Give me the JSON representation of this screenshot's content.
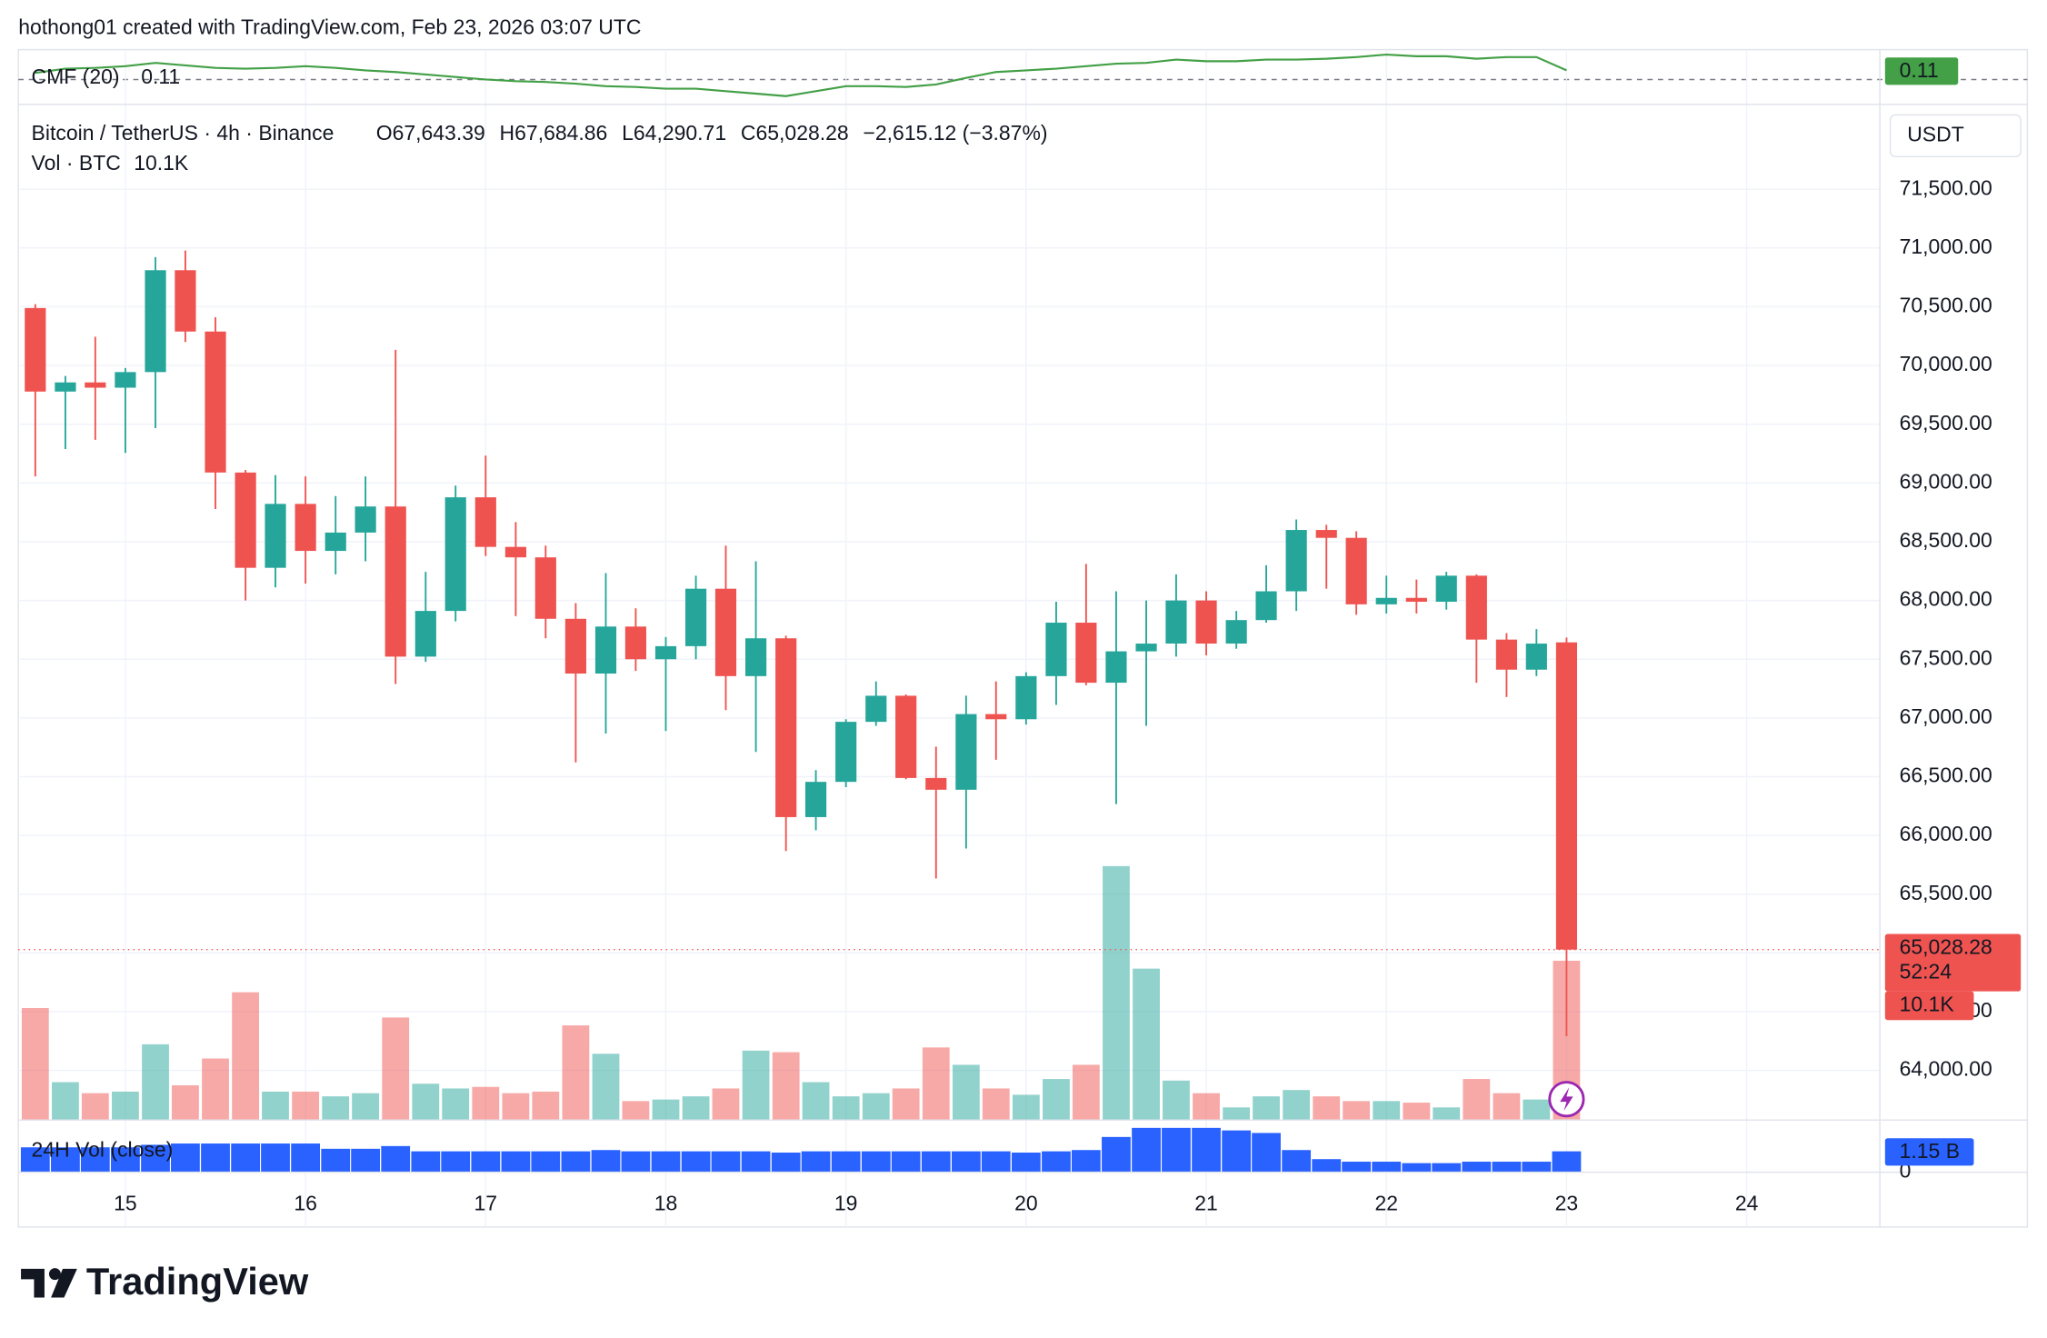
{
  "header": {
    "attribution": "hothong01 created with TradingView.com, Feb 23, 2026 03:07 UTC"
  },
  "brand": "TradingView",
  "chart_data": [
    {
      "type": "line",
      "title": "CMF (20)",
      "color": "#43a047",
      "ylim": [
        -0.3,
        0.36
      ],
      "values": [
        0.08,
        0.13,
        0.14,
        0.16,
        0.2,
        0.17,
        0.14,
        0.13,
        0.14,
        0.16,
        0.14,
        0.11,
        0.09,
        0.06,
        0.03,
        0,
        -0.02,
        -0.03,
        -0.05,
        -0.08,
        -0.09,
        -0.11,
        -0.11,
        -0.14,
        -0.17,
        -0.2,
        -0.14,
        -0.08,
        -0.08,
        -0.09,
        -0.06,
        0.02,
        0.09,
        0.11,
        0.13,
        0.16,
        0.19,
        0.2,
        0.24,
        0.22,
        0.22,
        0.24,
        0.24,
        0.25,
        0.27,
        0.3,
        0.28,
        0.28,
        0.25,
        0.27,
        0.27,
        0.11
      ]
    },
    {
      "type": "candlestick",
      "title": "Bitcoin / TetherUS · 4h · Binance",
      "ohlc_legend": [
        {
          "key": "O",
          "value": "67,643.39"
        },
        {
          "key": "H",
          "value": "67,684.86"
        },
        {
          "key": "L",
          "value": "64,290.71"
        },
        {
          "key": "C",
          "value": "65,028.28"
        }
      ],
      "change": "−2,615.12 (−3.87%)",
      "currency": "USDT",
      "countdown": "52:24",
      "up_color": "#26a69a",
      "down_color": "#ef5350",
      "x": [
        14.5,
        14.667,
        14.833,
        15,
        15.167,
        15.333,
        15.5,
        15.667,
        15.833,
        16,
        16.167,
        16.333,
        16.5,
        16.667,
        16.833,
        17,
        17.167,
        17.333,
        17.5,
        17.667,
        17.833,
        18,
        18.167,
        18.333,
        18.5,
        18.667,
        18.833,
        19,
        19.167,
        19.333,
        19.5,
        19.667,
        19.833,
        20,
        20.167,
        20.333,
        20.5,
        20.667,
        20.833,
        21,
        21.167,
        21.333,
        21.5,
        21.667,
        21.833,
        22,
        22.167,
        22.333,
        22.5,
        22.667,
        22.833,
        23
      ],
      "xlim": [
        14.406,
        24.739
      ],
      "xticks": [
        15,
        16,
        17,
        18,
        19,
        20,
        21,
        22,
        23,
        24
      ],
      "open": [
        70489,
        69778,
        69856,
        69811,
        69944,
        70811,
        70289,
        69089,
        68278,
        68822,
        68422,
        68578,
        68800,
        67522,
        67911,
        68878,
        68456,
        68367,
        67844,
        67378,
        67778,
        67500,
        67611,
        68100,
        67356,
        67678,
        66156,
        66456,
        66967,
        67189,
        66489,
        66389,
        67033,
        66989,
        67356,
        67811,
        67300,
        67567,
        67633,
        68000,
        67633,
        67833,
        68078,
        68600,
        68533,
        67967,
        68022,
        67989,
        68211,
        67667,
        67411,
        67643.39
      ],
      "high": [
        70522,
        69911,
        70244,
        69978,
        70922,
        70978,
        70411,
        69111,
        69067,
        69056,
        68889,
        69056,
        70133,
        68244,
        68978,
        69233,
        68667,
        68467,
        67978,
        68233,
        67933,
        67689,
        68211,
        68467,
        68333,
        67700,
        66556,
        66989,
        67311,
        67200,
        66756,
        67189,
        67311,
        67389,
        67989,
        68311,
        68078,
        68000,
        68222,
        68078,
        67911,
        68300,
        68689,
        68644,
        68589,
        68211,
        68178,
        68244,
        68222,
        67722,
        67756,
        67684.86
      ],
      "low": [
        69056,
        69289,
        69367,
        69256,
        69467,
        70200,
        68778,
        68000,
        68111,
        68144,
        68222,
        68333,
        67289,
        67478,
        67822,
        68378,
        67867,
        67678,
        66622,
        66867,
        67400,
        66889,
        67500,
        67067,
        66711,
        65867,
        66044,
        66411,
        66933,
        66478,
        65633,
        65889,
        66644,
        66944,
        67111,
        67278,
        66267,
        66933,
        67522,
        67533,
        67589,
        67811,
        67911,
        68100,
        67878,
        67889,
        67889,
        67922,
        67300,
        67178,
        67356,
        64290.71
      ],
      "close": [
        69778,
        69856,
        69811,
        69944,
        70811,
        70289,
        69089,
        68278,
        68822,
        68422,
        68578,
        68800,
        67522,
        67911,
        68878,
        68456,
        68367,
        67844,
        67378,
        67778,
        67500,
        67611,
        68100,
        67356,
        67678,
        66156,
        66456,
        66967,
        67189,
        66489,
        66389,
        67033,
        66989,
        67356,
        67811,
        67300,
        67567,
        67633,
        68000,
        67633,
        67833,
        68078,
        68600,
        68533,
        67967,
        68022,
        67989,
        68211,
        67667,
        67411,
        67633,
        65028.28
      ],
      "ylim": [
        63578,
        72222
      ],
      "yticks": [
        {
          "value": 64000,
          "label": "64,000.00"
        },
        {
          "value": 64500,
          "label": "64,500.00"
        },
        {
          "value": 65000,
          "label": "65,000.00"
        },
        {
          "value": 65500,
          "label": "65,500.00"
        },
        {
          "value": 66000,
          "label": "66,000.00"
        },
        {
          "value": 66500,
          "label": "66,500.00"
        },
        {
          "value": 67000,
          "label": "67,000.00"
        },
        {
          "value": 67500,
          "label": "67,500.00"
        },
        {
          "value": 68000,
          "label": "68,000.00"
        },
        {
          "value": 68500,
          "label": "68,500.00"
        },
        {
          "value": 69000,
          "label": "69,000.00"
        },
        {
          "value": 69500,
          "label": "69,500.00"
        },
        {
          "value": 70000,
          "label": "70,000.00"
        },
        {
          "value": 70500,
          "label": "70,500.00"
        },
        {
          "value": 71000,
          "label": "71,000.00"
        },
        {
          "value": 71500,
          "label": "71,500.00"
        }
      ],
      "volume": {
        "title": "Vol · BTC",
        "ylim": [
          0,
          64400
        ],
        "last_value_label": "10.1K",
        "values": [
          7100,
          2400,
          1700,
          1800,
          4800,
          2200,
          3900,
          8100,
          1800,
          1800,
          1500,
          1700,
          6500,
          2300,
          2000,
          2100,
          1700,
          1800,
          6000,
          4200,
          1200,
          1300,
          1500,
          2000,
          4400,
          4300,
          2400,
          1500,
          1700,
          2000,
          4600,
          3500,
          2000,
          1600,
          2600,
          3500,
          16100,
          9600,
          2500,
          1700,
          800,
          1500,
          1900,
          1500,
          1200,
          1200,
          1100,
          800,
          2600,
          1700,
          1300,
          10100
        ]
      }
    },
    {
      "type": "bar",
      "title": "24H Vol (close)",
      "color": "#2962ff",
      "ylim": [
        0,
        2.73
      ],
      "yticks": [
        0
      ],
      "last_value_label": "1.15 B",
      "values": [
        1.37,
        1.37,
        1.37,
        1.37,
        1.51,
        1.58,
        1.58,
        1.58,
        1.58,
        1.58,
        1.29,
        1.29,
        1.44,
        1.15,
        1.15,
        1.15,
        1.15,
        1.15,
        1.15,
        1.22,
        1.15,
        1.15,
        1.15,
        1.15,
        1.15,
        1.08,
        1.15,
        1.15,
        1.15,
        1.15,
        1.15,
        1.15,
        1.15,
        1.08,
        1.15,
        1.22,
        1.94,
        2.44,
        2.44,
        2.44,
        2.3,
        2.16,
        1.22,
        0.72,
        0.58,
        0.58,
        0.5,
        0.5,
        0.58,
        0.58,
        0.58,
        1.15
      ]
    }
  ]
}
